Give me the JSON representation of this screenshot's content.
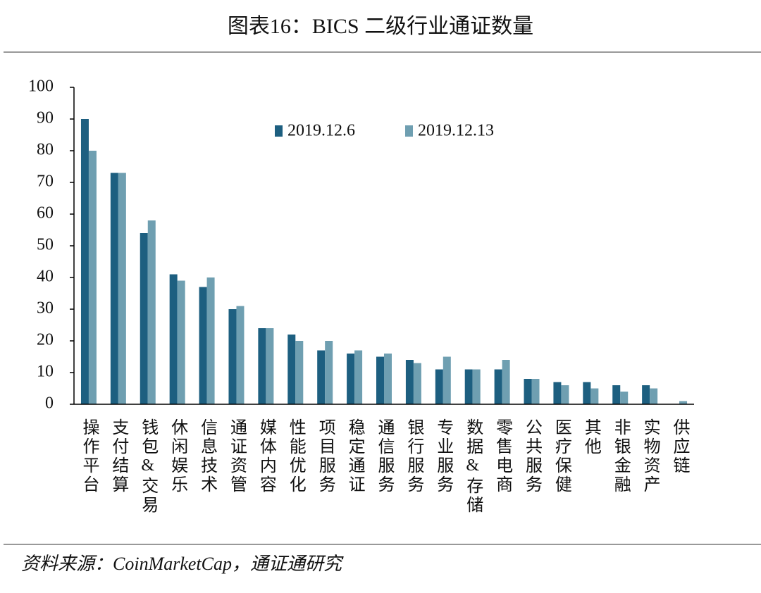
{
  "chart_data": {
    "type": "bar",
    "title": "图表16：BICS 二级行业通证数量",
    "source": "资料来源：CoinMarketCap，通证通研究",
    "categories": [
      "操作平台",
      "支付结算",
      "钱包&交易",
      "休闲娱乐",
      "信息技术",
      "通证资管",
      "媒体内容",
      "性能优化",
      "项目服务",
      "稳定通证",
      "通信服务",
      "银行服务",
      "专业服务",
      "数据&存储",
      "零售电商",
      "公共服务",
      "医疗保健",
      "其他",
      "非银金融",
      "实物资产",
      "供应链"
    ],
    "series": [
      {
        "name": "2019.12.6",
        "color": "#1d5f80",
        "values": [
          90,
          73,
          54,
          41,
          37,
          30,
          24,
          22,
          17,
          16,
          15,
          14,
          11,
          11,
          11,
          8,
          7,
          7,
          6,
          6,
          0
        ]
      },
      {
        "name": "2019.12.13",
        "color": "#6f9fb1",
        "values": [
          80,
          73,
          58,
          39,
          40,
          31,
          24,
          20,
          20,
          17,
          16,
          13,
          15,
          11,
          14,
          8,
          6,
          5,
          4,
          5,
          1
        ]
      }
    ],
    "ylim": [
      0,
      100
    ],
    "yticks": [
      0,
      10,
      20,
      30,
      40,
      50,
      60,
      70,
      80,
      90,
      100
    ],
    "grid": false,
    "legend": "top"
  }
}
